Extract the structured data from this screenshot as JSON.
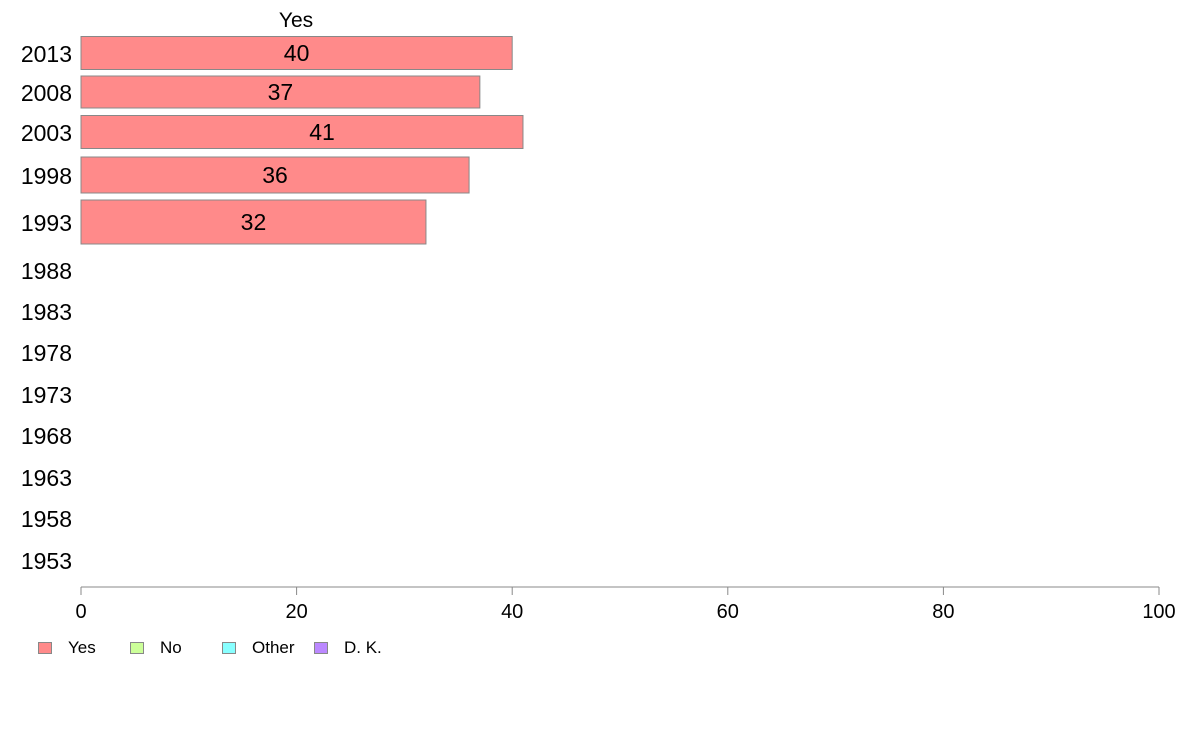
{
  "chart_data": {
    "type": "bar",
    "orientation": "horizontal",
    "panel_title": "Yes",
    "categories": [
      "2013",
      "2008",
      "2003",
      "1998",
      "1993",
      "1988",
      "1983",
      "1978",
      "1973",
      "1968",
      "1963",
      "1958",
      "1953"
    ],
    "series": [
      {
        "name": "Yes",
        "values": [
          40,
          37,
          41,
          36,
          32,
          null,
          null,
          null,
          null,
          null,
          null,
          null,
          null
        ]
      }
    ],
    "data_labels": [
      "40",
      "37",
      "41",
      "36",
      "32"
    ],
    "xlim": [
      0,
      100
    ],
    "x_ticks": [
      0,
      20,
      40,
      60,
      80,
      100
    ],
    "grid": false,
    "bar_color": "#ff8a8a",
    "bar_border_color": "#888888",
    "legend": {
      "placement": "bottom-left",
      "items": [
        {
          "label": "Yes",
          "color": "#ff8a8a"
        },
        {
          "label": "No",
          "color": "#ccff99"
        },
        {
          "label": "Other",
          "color": "#88ffff"
        },
        {
          "label": "D. K.",
          "color": "#bb88ff"
        }
      ]
    }
  }
}
